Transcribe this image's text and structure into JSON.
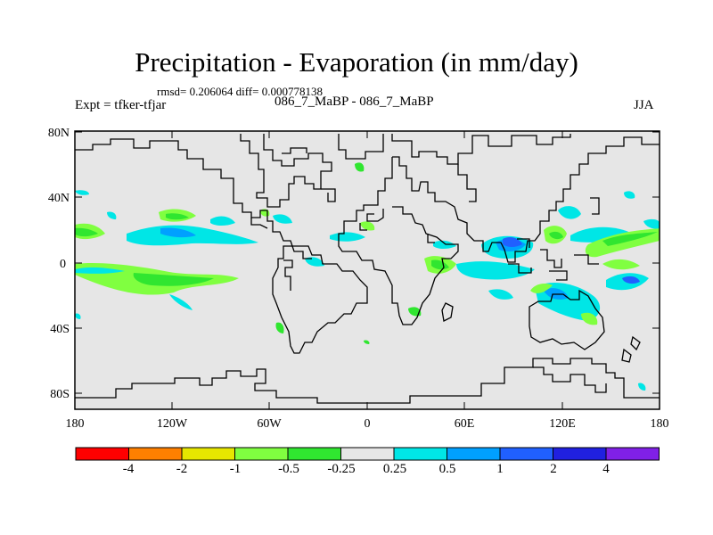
{
  "title": "Precipitation - Evaporation (in mm/day)",
  "stats": "rmsd= 0.206064 diff= 0.000778138",
  "subtitle": "086_7_MaBP - 086_7_MaBP",
  "experiment": "Expt = tfker-tfjar",
  "season": "JJA",
  "axes": {
    "x_ticks": [
      "180",
      "120W",
      "60W",
      "0",
      "60E",
      "120E",
      "180"
    ],
    "y_ticks": [
      "80N",
      "40N",
      "0",
      "40S",
      "80S"
    ]
  },
  "colorbar": {
    "colors": [
      "#ff0000",
      "#ff8000",
      "#e6e600",
      "#80ff40",
      "#30e630",
      "#e6e6e6",
      "#00e6e6",
      "#00a0ff",
      "#2060ff",
      "#2020e0",
      "#8020e6"
    ],
    "labels": [
      "-4",
      "-2",
      "-1",
      "-0.5",
      "-0.25",
      "0.25",
      "0.5",
      "1",
      "2",
      "4"
    ]
  },
  "colors": {
    "background": "#e6e6e6",
    "coastline": "#000000"
  }
}
